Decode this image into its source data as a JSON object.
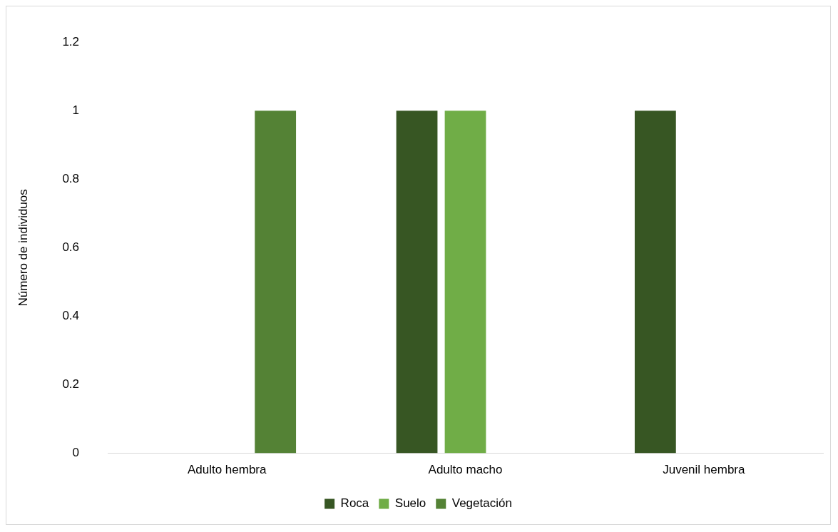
{
  "chart_data": {
    "type": "bar",
    "ylabel": "Número de individuos",
    "categories": [
      "Adulto hembra",
      "Adulto macho",
      "Juvenil hembra"
    ],
    "series": [
      {
        "name": "Roca",
        "color": "#375623",
        "values": [
          0,
          1,
          1
        ]
      },
      {
        "name": "Suelo",
        "color": "#70ad47",
        "values": [
          0,
          1,
          0
        ]
      },
      {
        "name": "Vegetación",
        "color": "#548235",
        "values": [
          1,
          0,
          0
        ]
      }
    ],
    "ylim": [
      0,
      1.2
    ],
    "yticks": [
      0,
      0.2,
      0.4,
      0.6,
      0.8,
      1,
      1.2
    ],
    "grid": false,
    "legend": "bottom"
  }
}
